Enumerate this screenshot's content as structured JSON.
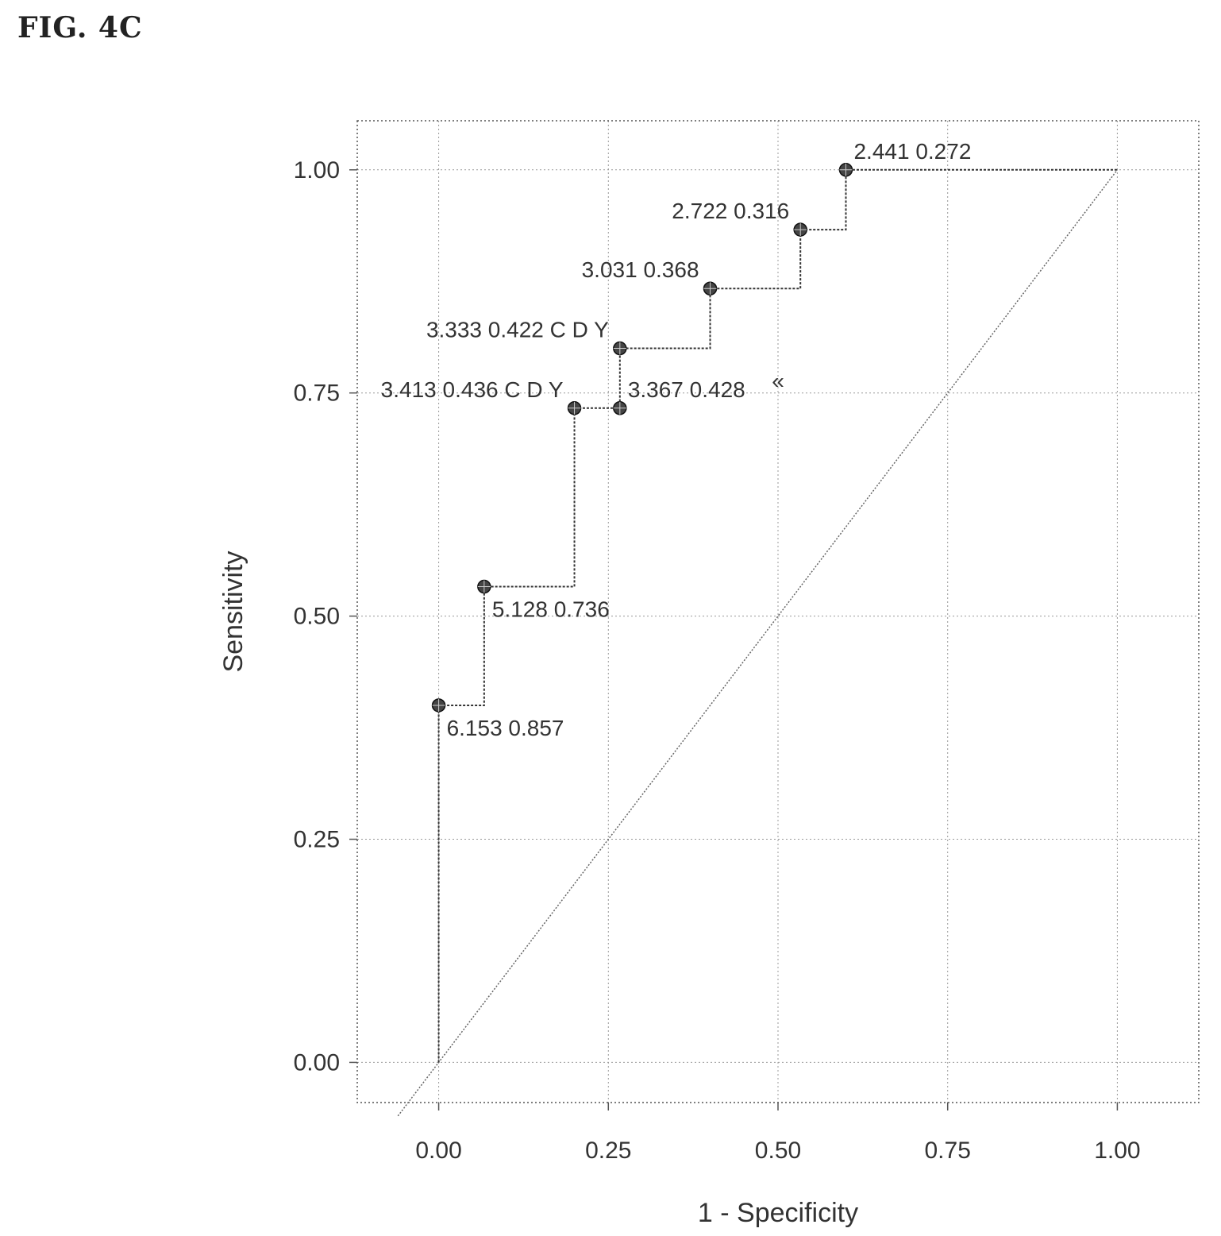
{
  "figure": {
    "label": "FIG. 4C"
  },
  "chart_data": {
    "type": "line",
    "xlabel": "1 - Specificity",
    "ylabel": "Sensitivity",
    "xlim": [
      -0.12,
      1.12
    ],
    "ylim": [
      -0.045,
      1.055
    ],
    "xticks": [
      "0.00",
      "0.25",
      "0.50",
      "0.75",
      "1.00"
    ],
    "yticks": [
      "0.00",
      "0.25",
      "0.50",
      "0.75",
      "1.00"
    ],
    "grid": true,
    "reference_line": {
      "from": [
        -0.06,
        -0.06
      ],
      "to": [
        1.0,
        1.0
      ]
    },
    "roc_path": [
      [
        0.0,
        0.0
      ],
      [
        0.0,
        0.4
      ],
      [
        0.067,
        0.4
      ],
      [
        0.067,
        0.533
      ],
      [
        0.2,
        0.533
      ],
      [
        0.2,
        0.733
      ],
      [
        0.267,
        0.733
      ],
      [
        0.267,
        0.8
      ],
      [
        0.4,
        0.8
      ],
      [
        0.4,
        0.867
      ],
      [
        0.533,
        0.867
      ],
      [
        0.533,
        0.933
      ],
      [
        0.6,
        0.933
      ],
      [
        0.6,
        1.0
      ],
      [
        1.0,
        1.0
      ]
    ],
    "points": [
      {
        "x": 0.0,
        "y": 0.4,
        "label": "6.153 0.857",
        "anchor": "below-right"
      },
      {
        "x": 0.067,
        "y": 0.533,
        "label": "5.128 0.736",
        "anchor": "below-right"
      },
      {
        "x": 0.2,
        "y": 0.733,
        "label": "3.413 0.436 C D Y",
        "anchor": "left"
      },
      {
        "x": 0.267,
        "y": 0.733,
        "label": "3.367 0.428",
        "anchor": "right"
      },
      {
        "x": 0.267,
        "y": 0.8,
        "label": "3.333 0.422 C D Y",
        "anchor": "left"
      },
      {
        "x": 0.4,
        "y": 0.867,
        "label": "3.031 0.368",
        "anchor": "left"
      },
      {
        "x": 0.533,
        "y": 0.933,
        "label": "2.722 0.316",
        "anchor": "left"
      },
      {
        "x": 0.6,
        "y": 1.0,
        "label": "2.441 0.272",
        "anchor": "right"
      }
    ],
    "annotations": [
      {
        "x": 0.5,
        "y": 0.755,
        "text": "«"
      }
    ]
  }
}
